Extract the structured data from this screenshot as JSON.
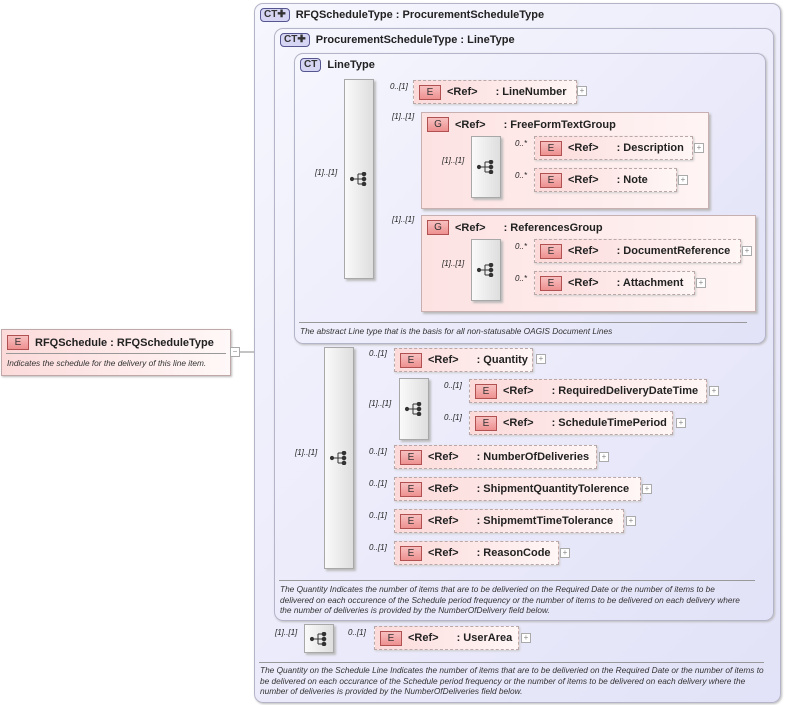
{
  "root": {
    "badge": "E",
    "title": "RFQSchedule : RFQScheduleType",
    "description": "Indicates the schedule for the delivery of this line item.",
    "collapse": "−"
  },
  "rfq_type": {
    "badge": "CT",
    "title": "RFQScheduleType : ProcurementScheduleType",
    "description": "The Quantity on the Schedule Line Indicates the number of items that are to be deliveried on the Required Date or the number of items to be delivered on each occurance of the Schedule period frequency or the number of items to be delivered on each delivery where the number of deliveries is provided by the NumberOfDeliveries field below.",
    "seq_card": "[1]..[1]",
    "user_area": {
      "card": "0..[1]",
      "badge": "E",
      "ref": "<Ref>",
      "name": ": UserArea"
    }
  },
  "proc_type": {
    "badge": "CT",
    "title": "ProcurementScheduleType : LineType",
    "description": "The Quantity Indicates the number of items that are to be deliveried on the Required Date or the number of items to be delivered on each occurence of the Schedule period frequency or the number of items to be delivered on each delivery where the number of deliveries is provided by the NumberOfDelivery field below.",
    "seq_card": "[1]..[1]",
    "elements": [
      {
        "card": "0..[1]",
        "badge": "E",
        "ref": "<Ref>",
        "name": ": Quantity"
      },
      {
        "card": "0..[1]",
        "badge": "E",
        "ref": "<Ref>",
        "name": ": NumberOfDeliveries"
      },
      {
        "card": "0..[1]",
        "badge": "E",
        "ref": "<Ref>",
        "name": ": ShipmentQuantityTolerence"
      },
      {
        "card": "0..[1]",
        "badge": "E",
        "ref": "<Ref>",
        "name": ": ShipmemtTimeTolerance"
      },
      {
        "card": "0..[1]",
        "badge": "E",
        "ref": "<Ref>",
        "name": ": ReasonCode"
      }
    ],
    "inner_seq": {
      "card": "[1]..[1]",
      "elements": [
        {
          "card": "0..[1]",
          "badge": "E",
          "ref": "<Ref>",
          "name": ": RequiredDeliveryDateTime"
        },
        {
          "card": "0..[1]",
          "badge": "E",
          "ref": "<Ref>",
          "name": ": ScheduleTimePeriod"
        }
      ]
    }
  },
  "line_type": {
    "badge": "CT",
    "title": "LineType",
    "description": "The abstract Line type that is the basis for all non-statusable OAGIS Document Lines",
    "seq_card": "[1]..[1]",
    "line_number": {
      "card": "0..[1]",
      "badge": "E",
      "ref": "<Ref>",
      "name": ": LineNumber"
    },
    "groups": [
      {
        "card": "[1]..[1]",
        "badge": "G",
        "ref": "<Ref>",
        "name": ": FreeFormTextGroup",
        "seq_card": "[1]..[1]",
        "elements": [
          {
            "card": "0..*",
            "badge": "E",
            "ref": "<Ref>",
            "name": ": Description"
          },
          {
            "card": "0..*",
            "badge": "E",
            "ref": "<Ref>",
            "name": ": Note"
          }
        ]
      },
      {
        "card": "[1]..[1]",
        "badge": "G",
        "ref": "<Ref>",
        "name": ": ReferencesGroup",
        "seq_card": "[1]..[1]",
        "elements": [
          {
            "card": "0..*",
            "badge": "E",
            "ref": "<Ref>",
            "name": ": DocumentReference"
          },
          {
            "card": "0..*",
            "badge": "E",
            "ref": "<Ref>",
            "name": ": Attachment"
          }
        ]
      }
    ]
  },
  "expand_symbol": "+"
}
